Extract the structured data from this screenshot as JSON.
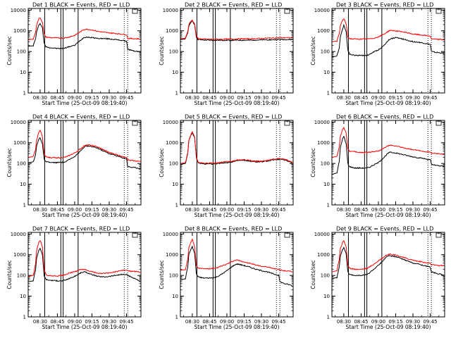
{
  "figure": {
    "colors": {
      "events": "#000000",
      "lld": "#ff0000",
      "background": "#ffffff"
    },
    "y_axis": {
      "label": "Counts/sec",
      "scale": "log",
      "range": [
        1,
        12000
      ],
      "tick_labels": [
        "1",
        "10",
        "100",
        "1000",
        "10000"
      ]
    },
    "x_axis": {
      "label": "Start Time (25-Oct-09 08:19:40)",
      "range": [
        19.67,
        117.5
      ],
      "tick_labels": [
        "08:30",
        "08:45",
        "09:00",
        "09:15",
        "09:30",
        "09:45"
      ]
    },
    "legend_box": "top-right corner of each panel"
  },
  "chart_data": [
    {
      "type": "line",
      "title": "Det 1 BLACK = Events, RED = LLD",
      "x": [
        20,
        24,
        26,
        27,
        29,
        30,
        32,
        33.5,
        35,
        37,
        40,
        45,
        50,
        52,
        55,
        60,
        65,
        68,
        70,
        75,
        80,
        85,
        90,
        95,
        100,
        105,
        106,
        110,
        115,
        117
      ],
      "series": [
        {
          "name": "Events",
          "color": "#000000",
          "values": [
            180,
            190,
            400,
            900,
            1900,
            2300,
            1400,
            250,
            170,
            160,
            150,
            140,
            140,
            150,
            170,
            200,
            350,
            470,
            500,
            470,
            430,
            420,
            410,
            380,
            350,
            320,
            130,
            110,
            100,
            95
          ]
        },
        {
          "name": "LLD",
          "color": "#ff0000",
          "values": [
            380,
            390,
            800,
            2000,
            3800,
            4300,
            2600,
            700,
            500,
            480,
            460,
            450,
            450,
            460,
            500,
            600,
            900,
            1150,
            1200,
            1100,
            950,
            850,
            800,
            750,
            700,
            650,
            430,
            420,
            410,
            400
          ]
        }
      ]
    },
    {
      "type": "line",
      "title": "Det 2 BLACK = Events, RED = LLD",
      "x": [
        20,
        24,
        26,
        27,
        29,
        30,
        32,
        33.5,
        35,
        37,
        40,
        45,
        50,
        52,
        55,
        60,
        65,
        68,
        70,
        75,
        80,
        85,
        90,
        95,
        100,
        105,
        106,
        110,
        115,
        117
      ],
      "series": [
        {
          "name": "Events",
          "color": "#000000",
          "values": [
            380,
            400,
            800,
            1800,
            2700,
            2900,
            2000,
            500,
            380,
            370,
            360,
            350,
            350,
            350,
            350,
            350,
            350,
            350,
            350,
            350,
            350,
            360,
            360,
            370,
            370,
            380,
            380,
            380,
            380,
            380
          ]
        },
        {
          "name": "LLD",
          "color": "#ff0000",
          "values": [
            420,
            440,
            900,
            2000,
            3000,
            3200,
            2200,
            560,
            420,
            410,
            400,
            390,
            390,
            390,
            390,
            400,
            400,
            400,
            410,
            410,
            410,
            420,
            430,
            440,
            450,
            460,
            460,
            460,
            460,
            460
          ]
        }
      ]
    },
    {
      "type": "line",
      "title": "Det 3 BLACK = Events, RED = LLD",
      "x": [
        20,
        24,
        26,
        27,
        29,
        30,
        32,
        33.5,
        35,
        37,
        40,
        45,
        50,
        52,
        55,
        60,
        65,
        68,
        70,
        75,
        80,
        85,
        90,
        95,
        100,
        105,
        106,
        110,
        115,
        117
      ],
      "series": [
        {
          "name": "Events",
          "color": "#000000",
          "values": [
            55,
            60,
            150,
            500,
            1300,
            1900,
            900,
            120,
            75,
            70,
            65,
            65,
            65,
            70,
            90,
            120,
            200,
            320,
            400,
            470,
            420,
            350,
            300,
            280,
            250,
            220,
            100,
            90,
            85,
            80
          ]
        },
        {
          "name": "LLD",
          "color": "#ff0000",
          "values": [
            300,
            320,
            700,
            1800,
            3300,
            3800,
            2200,
            500,
            420,
            410,
            400,
            400,
            400,
            410,
            430,
            500,
            700,
            900,
            1050,
            1000,
            900,
            800,
            700,
            650,
            600,
            560,
            400,
            390,
            380,
            370
          ]
        }
      ]
    },
    {
      "type": "line",
      "title": "Det 4 BLACK = Events, RED = LLD",
      "x": [
        20,
        24,
        26,
        27,
        29,
        30,
        32,
        33.5,
        35,
        37,
        40,
        45,
        50,
        52,
        55,
        60,
        65,
        68,
        70,
        75,
        80,
        85,
        90,
        95,
        100,
        105,
        106,
        110,
        115,
        117
      ],
      "series": [
        {
          "name": "Events",
          "color": "#000000",
          "values": [
            110,
            120,
            250,
            700,
            1500,
            1800,
            900,
            160,
            120,
            115,
            110,
            110,
            115,
            120,
            150,
            220,
            400,
            600,
            700,
            650,
            550,
            400,
            300,
            250,
            200,
            170,
            70,
            65,
            60,
            55
          ]
        },
        {
          "name": "LLD",
          "color": "#ff0000",
          "values": [
            200,
            210,
            450,
            1400,
            3200,
            4200,
            2000,
            300,
            220,
            200,
            190,
            190,
            195,
            200,
            240,
            320,
            500,
            700,
            800,
            750,
            620,
            460,
            340,
            280,
            230,
            200,
            150,
            140,
            130,
            120
          ]
        }
      ]
    },
    {
      "type": "line",
      "title": "Det 5 BLACK = Events, RED = LLD",
      "x": [
        20,
        24,
        26,
        27,
        29,
        30,
        32,
        33.5,
        35,
        37,
        40,
        45,
        50,
        52,
        55,
        60,
        65,
        68,
        70,
        75,
        80,
        85,
        90,
        95,
        100,
        105,
        106,
        110,
        115,
        117
      ],
      "series": [
        {
          "name": "Events",
          "color": "#000000",
          "values": [
            90,
            100,
            300,
            1200,
            2500,
            3000,
            1800,
            200,
            110,
            100,
            95,
            95,
            95,
            100,
            105,
            110,
            120,
            130,
            140,
            140,
            130,
            120,
            120,
            130,
            150,
            160,
            160,
            150,
            120,
            100
          ]
        },
        {
          "name": "LLD",
          "color": "#ff0000",
          "values": [
            100,
            110,
            330,
            1300,
            2700,
            3300,
            2000,
            220,
            120,
            110,
            105,
            105,
            105,
            110,
            115,
            120,
            130,
            140,
            150,
            150,
            140,
            130,
            130,
            140,
            160,
            170,
            170,
            160,
            130,
            110
          ]
        }
      ]
    },
    {
      "type": "line",
      "title": "Det 6 BLACK = Events, RED = LLD",
      "x": [
        20,
        24,
        26,
        27,
        29,
        30,
        32,
        33.5,
        35,
        37,
        40,
        45,
        50,
        52,
        55,
        60,
        65,
        68,
        70,
        75,
        80,
        85,
        90,
        95,
        100,
        105,
        106,
        110,
        115,
        117
      ],
      "series": [
        {
          "name": "Events",
          "color": "#000000",
          "values": [
            30,
            35,
            120,
            600,
            1600,
            2000,
            900,
            100,
            70,
            65,
            60,
            60,
            60,
            65,
            80,
            110,
            200,
            300,
            350,
            320,
            280,
            240,
            210,
            190,
            170,
            150,
            90,
            80,
            75,
            70
          ]
        },
        {
          "name": "LLD",
          "color": "#ff0000",
          "values": [
            200,
            220,
            600,
            2000,
            4500,
            5500,
            3000,
            500,
            400,
            380,
            360,
            340,
            340,
            350,
            370,
            400,
            550,
            700,
            750,
            700,
            600,
            520,
            460,
            420,
            380,
            350,
            320,
            300,
            290,
            280
          ]
        }
      ]
    },
    {
      "type": "line",
      "title": "Det 7 BLACK = Events, RED = LLD",
      "x": [
        20,
        24,
        26,
        27,
        29,
        30,
        32,
        33.5,
        35,
        37,
        40,
        45,
        50,
        52,
        55,
        60,
        65,
        68,
        70,
        75,
        80,
        85,
        90,
        95,
        100,
        105,
        106,
        110,
        115,
        117
      ],
      "series": [
        {
          "name": "Events",
          "color": "#000000",
          "values": [
            50,
            55,
            180,
            700,
            1700,
            2100,
            1000,
            100,
            65,
            60,
            58,
            55,
            55,
            60,
            70,
            90,
            130,
            150,
            140,
            110,
            90,
            85,
            90,
            100,
            110,
            110,
            100,
            80,
            60,
            50
          ]
        },
        {
          "name": "LLD",
          "color": "#ff0000",
          "values": [
            90,
            100,
            350,
            1600,
            4000,
            5000,
            2500,
            200,
            110,
            100,
            95,
            95,
            100,
            110,
            130,
            150,
            190,
            200,
            180,
            150,
            130,
            125,
            130,
            150,
            170,
            180,
            170,
            160,
            150,
            140
          ]
        }
      ]
    },
    {
      "type": "line",
      "title": "Det 8 BLACK = Events, RED = LLD",
      "x": [
        20,
        24,
        26,
        27,
        29,
        30,
        32,
        33.5,
        35,
        37,
        40,
        45,
        50,
        52,
        55,
        60,
        65,
        68,
        70,
        75,
        80,
        85,
        90,
        95,
        100,
        105,
        106,
        110,
        115,
        117
      ],
      "series": [
        {
          "name": "Events",
          "color": "#000000",
          "values": [
            60,
            70,
            250,
            1000,
            2000,
            2400,
            1200,
            120,
            85,
            80,
            75,
            75,
            80,
            90,
            110,
            170,
            280,
            350,
            350,
            300,
            250,
            200,
            170,
            150,
            120,
            100,
            50,
            40,
            35,
            30
          ]
        },
        {
          "name": "LLD",
          "color": "#ff0000",
          "values": [
            180,
            190,
            600,
            2200,
            4500,
            5500,
            2500,
            300,
            230,
            220,
            210,
            210,
            220,
            240,
            280,
            350,
            480,
            550,
            530,
            450,
            380,
            320,
            280,
            250,
            220,
            200,
            180,
            170,
            160,
            150
          ]
        }
      ]
    },
    {
      "type": "line",
      "title": "Det 9 BLACK = Events, RED = LLD",
      "x": [
        20,
        24,
        26,
        27,
        29,
        30,
        32,
        33.5,
        35,
        37,
        40,
        45,
        50,
        52,
        55,
        60,
        65,
        68,
        70,
        75,
        80,
        85,
        90,
        95,
        100,
        105,
        106,
        110,
        115,
        117
      ],
      "series": [
        {
          "name": "Events",
          "color": "#000000",
          "values": [
            70,
            80,
            250,
            900,
            1800,
            2200,
            1100,
            150,
            110,
            105,
            100,
            100,
            110,
            130,
            180,
            300,
            600,
            850,
            900,
            800,
            650,
            500,
            400,
            350,
            300,
            250,
            150,
            130,
            110,
            100
          ]
        },
        {
          "name": "LLD",
          "color": "#ff0000",
          "values": [
            150,
            170,
            600,
            2000,
            4000,
            4800,
            2500,
            300,
            220,
            210,
            200,
            200,
            220,
            250,
            320,
            500,
            800,
            1000,
            1050,
            950,
            800,
            650,
            550,
            480,
            420,
            380,
            330,
            310,
            300,
            290
          ]
        }
      ]
    }
  ]
}
